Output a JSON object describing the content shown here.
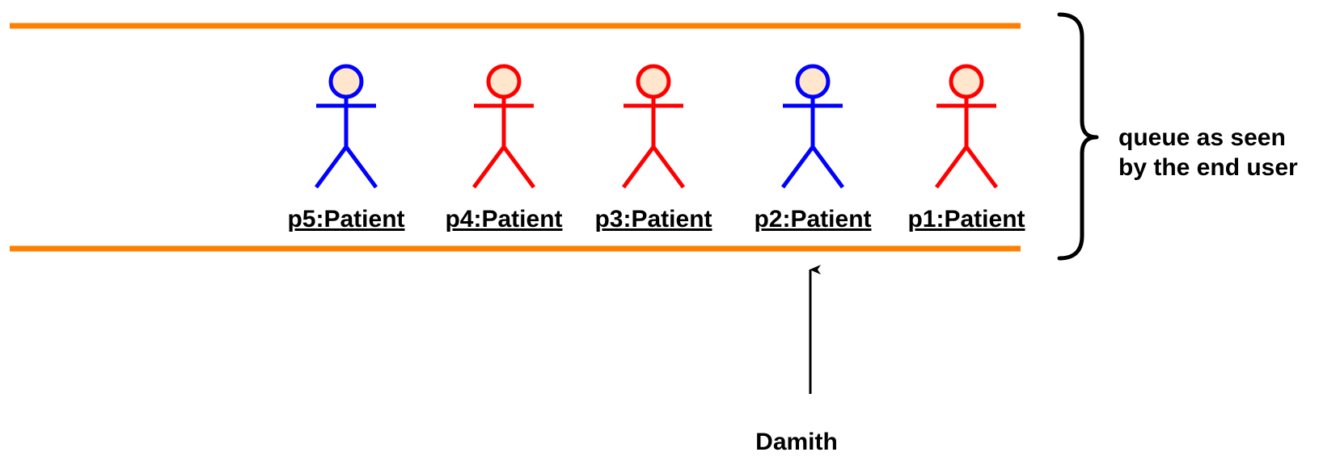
{
  "colors": {
    "queue_border": "#ff8000",
    "actor_red": "#ff0000",
    "actor_blue": "#0000ff",
    "head_fill": "#ffe6cc",
    "text": "#000000"
  },
  "patients": [
    {
      "label": "p5:Patient",
      "color": "blue"
    },
    {
      "label": "p4:Patient",
      "color": "red"
    },
    {
      "label": "p3:Patient",
      "color": "red"
    },
    {
      "label": "p2:Patient",
      "color": "blue"
    },
    {
      "label": "p1:Patient",
      "color": "red"
    }
  ],
  "brace_label": {
    "line1": "queue as seen",
    "line2": "by the end user"
  },
  "pointer": {
    "label": "Damith",
    "points_to": "p2:Patient"
  }
}
